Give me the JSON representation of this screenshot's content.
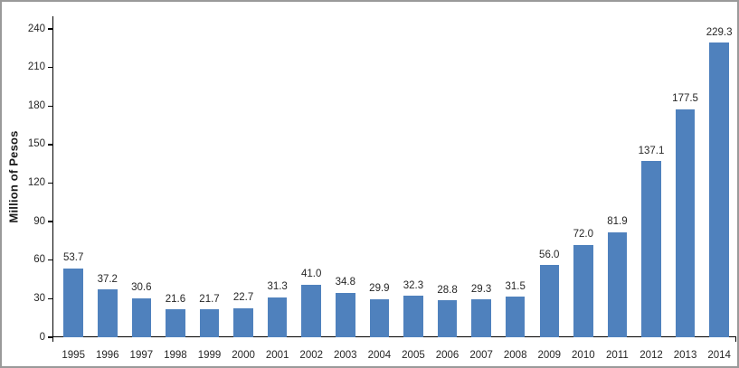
{
  "chart_data": {
    "type": "bar",
    "title": "",
    "xlabel": "",
    "ylabel": "Million of Pesos",
    "categories": [
      "1995",
      "1996",
      "1997",
      "1998",
      "1999",
      "2000",
      "2001",
      "2002",
      "2003",
      "2004",
      "2005",
      "2006",
      "2007",
      "2008",
      "2009",
      "2010",
      "2011",
      "2012",
      "2013",
      "2014"
    ],
    "values": [
      53.7,
      37.2,
      30.6,
      21.6,
      21.7,
      22.7,
      31.3,
      41.0,
      34.8,
      29.9,
      32.3,
      28.8,
      29.3,
      31.5,
      56.0,
      72.0,
      81.9,
      137.1,
      177.5,
      229.3
    ],
    "data_labels": [
      "53.7",
      "37.2",
      "30.6",
      "21.6",
      "21.7",
      "22.7",
      "31.3",
      "41.0",
      "34.8",
      "29.9",
      "32.3",
      "28.8",
      "29.3",
      "31.5",
      "56.0",
      "72.0",
      "81.9",
      "137.1",
      "177.5",
      "229.3"
    ],
    "y_ticks": [
      0,
      30,
      60,
      90,
      120,
      150,
      180,
      210,
      240
    ],
    "ylim": [
      0,
      250
    ],
    "grid": false,
    "legend": false,
    "bar_color": "#4F81BD",
    "axis_color": "#000000",
    "label_color": "#262626",
    "border_color": "#9a9a9a"
  }
}
